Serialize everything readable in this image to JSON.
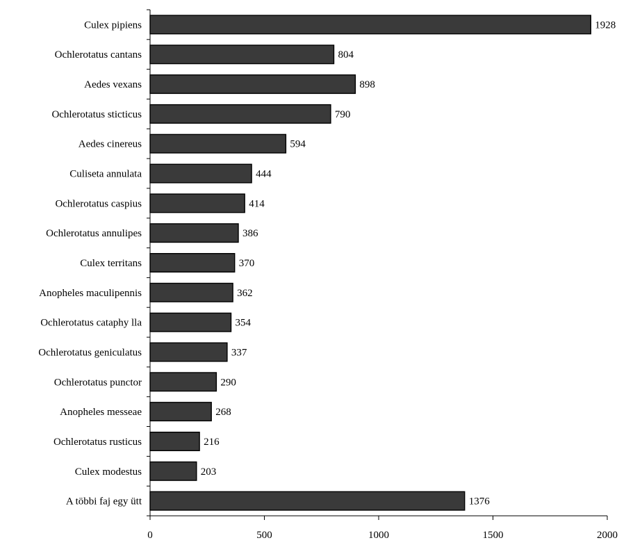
{
  "chart_data": {
    "type": "bar",
    "orientation": "horizontal",
    "categories": [
      "Culex pipiens",
      "Ochlerotatus cantans",
      "Aedes vexans",
      "Ochlerotatus sticticus",
      "Aedes cinereus",
      "Culiseta annulata",
      "Ochlerotatus caspius",
      "Ochlerotatus annulipes",
      "Culex territans",
      "Anopheles maculipennis",
      "Ochlerotatus cataphy lla",
      "Ochlerotatus geniculatus",
      "Ochlerotatus punctor",
      "Anopheles messeae",
      "Ochlerotatus rusticus",
      "Culex modestus",
      "A többi faj egy ütt"
    ],
    "values": [
      1928,
      804,
      898,
      790,
      594,
      444,
      414,
      386,
      370,
      362,
      354,
      337,
      290,
      268,
      216,
      203,
      1376
    ],
    "data_labels": [
      "1928",
      "804",
      "898",
      "790",
      "594",
      "444",
      "414",
      "386",
      "370",
      "362",
      "354",
      "337",
      "290",
      "268",
      "216",
      "203",
      "1376"
    ],
    "xlim": [
      0,
      2000
    ],
    "x_ticks": [
      0,
      500,
      1000,
      1500,
      2000
    ],
    "x_tick_labels": [
      "0",
      "500",
      "1000",
      "1500",
      "2000"
    ],
    "title": "",
    "xlabel": "",
    "ylabel": "",
    "grid": false,
    "legend": "none",
    "colors": {
      "bar_fill": "#3a3a3a",
      "bar_stroke": "#000000",
      "text": "#000000",
      "background": "#ffffff"
    }
  }
}
